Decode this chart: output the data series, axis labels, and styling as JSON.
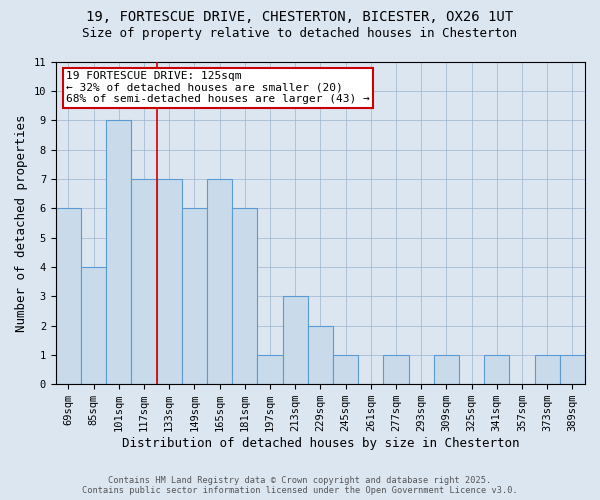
{
  "title": "19, FORTESCUE DRIVE, CHESTERTON, BICESTER, OX26 1UT",
  "subtitle": "Size of property relative to detached houses in Chesterton",
  "xlabel": "Distribution of detached houses by size in Chesterton",
  "ylabel": "Number of detached properties",
  "categories": [
    "69sqm",
    "85sqm",
    "101sqm",
    "117sqm",
    "133sqm",
    "149sqm",
    "165sqm",
    "181sqm",
    "197sqm",
    "213sqm",
    "229sqm",
    "245sqm",
    "261sqm",
    "277sqm",
    "293sqm",
    "309sqm",
    "325sqm",
    "341sqm",
    "357sqm",
    "373sqm",
    "389sqm"
  ],
  "values": [
    6,
    4,
    9,
    7,
    7,
    6,
    7,
    6,
    1,
    3,
    2,
    1,
    0,
    1,
    0,
    1,
    0,
    1,
    0,
    1,
    1
  ],
  "bar_color": "#c9daea",
  "bar_edge_color": "#5b9bd5",
  "background_color": "#dce6f1",
  "ylim": [
    0,
    11
  ],
  "yticks": [
    0,
    1,
    2,
    3,
    4,
    5,
    6,
    7,
    8,
    9,
    10,
    11
  ],
  "red_line_x": 3.5,
  "annotation_text": "19 FORTESCUE DRIVE: 125sqm\n← 32% of detached houses are smaller (20)\n68% of semi-detached houses are larger (43) →",
  "annotation_box_color": "#ffffff",
  "annotation_box_edge_color": "#cc0000",
  "footer_line1": "Contains HM Land Registry data © Crown copyright and database right 2025.",
  "footer_line2": "Contains public sector information licensed under the Open Government Licence v3.0.",
  "title_fontsize": 10,
  "subtitle_fontsize": 9,
  "tick_fontsize": 7.5,
  "label_fontsize": 9,
  "ann_fontsize": 8
}
